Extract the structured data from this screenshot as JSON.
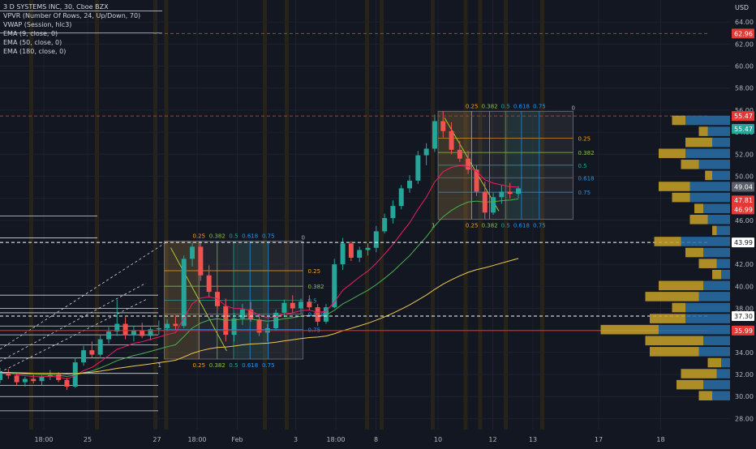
{
  "legend": {
    "title": "3 D SYSTEMS INC, 30, Cboe BZX",
    "indicators": [
      "VPVR (Number Of Rows, 24, Up/Down, 70)",
      "VWAP (Session, hlc3)",
      "EMA (9, close, 0)",
      "EMA (50, close, 0)",
      "EMA (180, close, 0)"
    ]
  },
  "colors": {
    "background": "#131722",
    "grid": "#1e222d",
    "session_band": "#3a2e12",
    "up": "#26a69a",
    "down": "#ef5350",
    "ema9": "#e91e63",
    "ema50": "#4caf50",
    "ema180": "#f2c94c",
    "vwap": "#2962ff",
    "fib_orange": "#f7a21b",
    "fib_green": "#8bc34a",
    "fib_teal": "#26a69a",
    "fib_blue": "#2196f3",
    "vp_up": "#2a6fa8",
    "vp_down": "#c9a227",
    "red_line": "#ff1e1e"
  },
  "chart_data": {
    "type": "candlestick",
    "currency_label": "USD",
    "ylim": [
      27,
      66
    ],
    "y_ticks": [
      28,
      30,
      32,
      34,
      36,
      38,
      40,
      42,
      44,
      46,
      48,
      50,
      52,
      54,
      56,
      58,
      60,
      62,
      64
    ],
    "y_tick_labels": [
      "28.00",
      "30.00",
      "32.00",
      "34.00",
      "36.00",
      "38.00",
      "40.00",
      "42.00",
      "44.00",
      "46.00",
      "48.00",
      "50.00",
      "52.00",
      "54.00",
      "56.00",
      "58.00",
      "60.00",
      "62.00",
      "64.00"
    ],
    "x_labels": [
      {
        "t": 0.06,
        "label": "18:00"
      },
      {
        "t": 0.12,
        "label": "25"
      },
      {
        "t": 0.215,
        "label": "27"
      },
      {
        "t": 0.27,
        "label": "18:00"
      },
      {
        "t": 0.325,
        "label": "Feb"
      },
      {
        "t": 0.405,
        "label": "3"
      },
      {
        "t": 0.46,
        "label": "18:00"
      },
      {
        "t": 0.515,
        "label": "8"
      },
      {
        "t": 0.6,
        "label": "10"
      },
      {
        "t": 0.675,
        "label": "12"
      },
      {
        "t": 0.73,
        "label": "13"
      },
      {
        "t": 0.82,
        "label": "17"
      },
      {
        "t": 0.905,
        "label": "18"
      }
    ],
    "price_labels": [
      {
        "price": 62.96,
        "text": "62.96",
        "color": "#e53935"
      },
      {
        "price": 55.47,
        "text": "55.47",
        "color": "#e53935"
      },
      {
        "price": 54.3,
        "text": "55.47",
        "color": "#26a69a"
      },
      {
        "price": 49.04,
        "text": "49.04",
        "color": "#5d606b"
      },
      {
        "price": 47.81,
        "text": "47.81",
        "color": "#e53935"
      },
      {
        "price": 46.99,
        "text": "46.99",
        "color": "#e53935"
      },
      {
        "price": 43.99,
        "text": "43.99",
        "color": "#ffffff"
      },
      {
        "price": 37.3,
        "text": "37.30",
        "color": "#ffffff"
      },
      {
        "price": 35.99,
        "text": "35.99",
        "color": "#e53935"
      }
    ],
    "horizontal_levels": [
      {
        "price": 62.96,
        "style": "dashed",
        "color": "#b23b3b",
        "x0": 0.21,
        "x1": 0.97
      },
      {
        "price": 55.47,
        "style": "dashed",
        "color": "#b23b3b",
        "x0": 0.0,
        "x1": 0.97
      },
      {
        "price": 43.99,
        "style": "dashed",
        "color": "#ffffff",
        "x0": 0.0,
        "x1": 0.97
      },
      {
        "price": 37.3,
        "style": "dashed",
        "color": "#ffffff",
        "x0": 0.0,
        "x1": 0.97
      },
      {
        "price": 35.99,
        "style": "solid",
        "color": "#ff1e1e",
        "x0": 0.0,
        "x1": 0.97
      }
    ],
    "white_levels": [
      65.0,
      63.0,
      46.4,
      44.4,
      39.2,
      38.0,
      37.6,
      36.4,
      35.6,
      34.7,
      33.5,
      32.1,
      31.0,
      30.0,
      28.7
    ],
    "fib_levels": [
      "0",
      "0.25",
      "0.382",
      "0.5",
      "0.618",
      "0.75",
      "1"
    ],
    "fib_boxes": [
      {
        "t0": 0.225,
        "t1": 0.415,
        "p_top": 44.1,
        "p_bot": 33.4
      },
      {
        "t0": 0.6,
        "t1": 0.785,
        "p_top": 55.9,
        "p_bot": 46.1
      }
    ],
    "candles": [
      [
        31.5,
        32.6,
        31.2,
        32.2
      ],
      [
        32.2,
        32.5,
        31.6,
        31.9
      ],
      [
        31.9,
        32.1,
        31.0,
        31.3
      ],
      [
        31.3,
        31.8,
        30.9,
        31.6
      ],
      [
        31.6,
        32.0,
        31.2,
        31.4
      ],
      [
        31.4,
        31.9,
        31.0,
        31.8
      ],
      [
        31.8,
        32.4,
        31.5,
        32.0
      ],
      [
        32.0,
        32.2,
        31.3,
        31.5
      ],
      [
        31.5,
        31.7,
        30.6,
        30.9
      ],
      [
        30.9,
        33.5,
        30.8,
        33.1
      ],
      [
        33.1,
        34.6,
        32.8,
        34.2
      ],
      [
        34.2,
        35.0,
        33.5,
        33.8
      ],
      [
        33.8,
        35.6,
        33.6,
        35.2
      ],
      [
        35.2,
        36.3,
        34.8,
        35.9
      ],
      [
        35.9,
        38.8,
        35.5,
        36.6
      ],
      [
        36.6,
        37.2,
        35.2,
        35.6
      ],
      [
        35.6,
        36.4,
        35.0,
        36.0
      ],
      [
        36.0,
        36.7,
        35.3,
        35.5
      ],
      [
        35.5,
        36.3,
        35.1,
        36.1
      ],
      [
        36.1,
        36.9,
        35.6,
        36.2
      ],
      [
        36.2,
        37.0,
        35.9,
        36.6
      ],
      [
        36.6,
        37.4,
        36.1,
        36.4
      ],
      [
        36.4,
        42.8,
        36.2,
        42.5
      ],
      [
        42.5,
        44.0,
        41.8,
        43.6
      ],
      [
        43.6,
        44.1,
        40.5,
        41.0
      ],
      [
        41.0,
        41.9,
        39.0,
        39.5
      ],
      [
        39.5,
        40.1,
        37.8,
        38.2
      ],
      [
        38.2,
        38.9,
        35.0,
        35.6
      ],
      [
        35.6,
        37.6,
        35.0,
        37.1
      ],
      [
        37.1,
        38.4,
        36.5,
        37.9
      ],
      [
        37.9,
        38.6,
        36.8,
        37.0
      ],
      [
        37.0,
        37.5,
        35.5,
        35.8
      ],
      [
        35.8,
        36.6,
        35.0,
        36.2
      ],
      [
        36.2,
        37.9,
        36.0,
        37.6
      ],
      [
        37.6,
        38.8,
        37.2,
        38.5
      ],
      [
        38.5,
        39.2,
        37.6,
        38.0
      ],
      [
        38.0,
        38.9,
        37.5,
        38.6
      ],
      [
        38.6,
        39.2,
        37.8,
        38.1
      ],
      [
        38.1,
        38.4,
        36.4,
        36.8
      ],
      [
        36.8,
        38.4,
        36.6,
        38.1
      ],
      [
        38.1,
        42.5,
        38.0,
        42.0
      ],
      [
        42.0,
        44.4,
        41.5,
        43.9
      ],
      [
        43.9,
        44.1,
        42.3,
        42.6
      ],
      [
        42.6,
        43.6,
        42.2,
        43.3
      ],
      [
        43.3,
        43.9,
        42.8,
        43.5
      ],
      [
        43.5,
        45.5,
        43.1,
        45.0
      ],
      [
        45.0,
        46.6,
        44.8,
        46.2
      ],
      [
        46.2,
        47.8,
        45.7,
        47.3
      ],
      [
        47.3,
        49.2,
        47.0,
        48.9
      ],
      [
        48.9,
        50.1,
        48.5,
        49.6
      ],
      [
        49.6,
        52.3,
        49.3,
        51.9
      ],
      [
        51.9,
        53.0,
        51.0,
        52.5
      ],
      [
        52.5,
        55.6,
        52.2,
        55.0
      ],
      [
        55.0,
        55.9,
        53.5,
        54.1
      ],
      [
        54.1,
        54.9,
        52.0,
        52.4
      ],
      [
        52.4,
        53.2,
        51.3,
        51.6
      ],
      [
        51.6,
        52.3,
        50.2,
        50.6
      ],
      [
        50.6,
        51.0,
        48.2,
        48.6
      ],
      [
        48.6,
        49.5,
        46.1,
        46.7
      ],
      [
        46.7,
        48.5,
        46.5,
        48.1
      ],
      [
        48.1,
        49.2,
        47.5,
        48.6
      ],
      [
        48.6,
        49.4,
        48.0,
        48.4
      ],
      [
        48.4,
        49.1,
        48.0,
        48.9
      ]
    ],
    "volume_profile": [
      {
        "price": 55.0,
        "up": 0.5,
        "down": 0.15
      },
      {
        "price": 54.0,
        "up": 0.25,
        "down": 0.1
      },
      {
        "price": 53.0,
        "up": 0.2,
        "down": 0.3
      },
      {
        "price": 52.0,
        "up": 0.5,
        "down": 0.3
      },
      {
        "price": 51.0,
        "up": 0.35,
        "down": 0.2
      },
      {
        "price": 50.0,
        "up": 0.2,
        "down": 0.08
      },
      {
        "price": 49.0,
        "up": 0.45,
        "down": 0.35
      },
      {
        "price": 48.0,
        "up": 0.45,
        "down": 0.2
      },
      {
        "price": 47.0,
        "up": 0.3,
        "down": 0.1
      },
      {
        "price": 46.0,
        "up": 0.25,
        "down": 0.2
      },
      {
        "price": 45.0,
        "up": 0.15,
        "down": 0.05
      },
      {
        "price": 44.0,
        "up": 0.55,
        "down": 0.3
      },
      {
        "price": 43.0,
        "up": 0.3,
        "down": 0.2
      },
      {
        "price": 42.0,
        "up": 0.15,
        "down": 0.2
      },
      {
        "price": 41.0,
        "up": 0.1,
        "down": 0.1
      },
      {
        "price": 40.0,
        "up": 0.3,
        "down": 0.5
      },
      {
        "price": 39.0,
        "up": 0.35,
        "down": 0.6
      },
      {
        "price": 38.0,
        "up": 0.5,
        "down": 0.15
      },
      {
        "price": 37.0,
        "up": 0.5,
        "down": 0.4
      },
      {
        "price": 36.0,
        "up": 0.8,
        "down": 0.65
      },
      {
        "price": 35.0,
        "up": 0.3,
        "down": 0.65
      },
      {
        "price": 34.0,
        "up": 0.35,
        "down": 0.55
      },
      {
        "price": 33.0,
        "up": 0.1,
        "down": 0.15
      },
      {
        "price": 32.0,
        "up": 0.15,
        "down": 0.4
      },
      {
        "price": 31.0,
        "up": 0.3,
        "down": 0.3
      },
      {
        "price": 30.0,
        "up": 0.2,
        "down": 0.15
      }
    ]
  }
}
